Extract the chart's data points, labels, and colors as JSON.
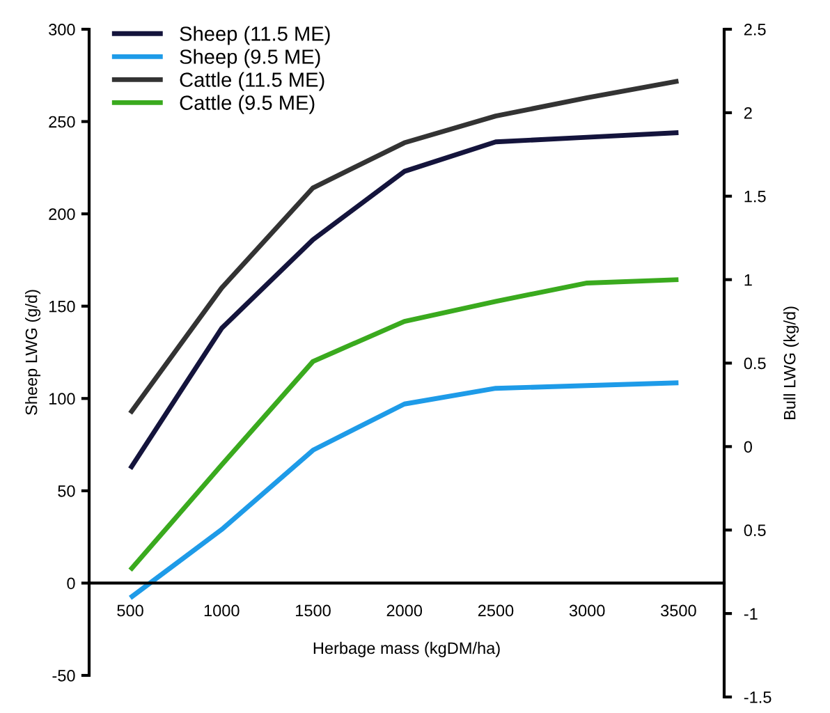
{
  "chart_data": {
    "type": "line",
    "xlabel": "Herbage mass (kgDM/ha)",
    "ylabel": "Sheep LWG (g/d)",
    "y2label": "Bull LWG (kg/d)",
    "x": [
      500,
      1000,
      1500,
      2000,
      2500,
      3000,
      3500
    ],
    "series": [
      {
        "name": "Sheep (11.5 ME)",
        "color": "#14143c",
        "values": [
          62,
          138,
          186,
          223,
          239,
          241.5,
          244
        ]
      },
      {
        "name": "Sheep (9.5 ME)",
        "color": "#1e9be8",
        "values": [
          -8,
          29,
          72,
          97,
          105.5,
          107,
          108.5
        ]
      },
      {
        "name": "Cattle (11.5 ME)",
        "color": "#333333",
        "axis": "y2",
        "values": [
          0.2,
          0.95,
          1.55,
          1.82,
          1.98,
          2.09,
          2.19
        ]
      },
      {
        "name": "Cattle (9.5 ME)",
        "color": "#3aaa1e",
        "axis": "y2",
        "values": [
          -0.74,
          -0.11,
          0.51,
          0.75,
          0.87,
          0.98,
          1.0
        ]
      }
    ],
    "xlim": [
      275,
      3750
    ],
    "xticks": [
      500,
      1000,
      1500,
      2000,
      2500,
      3000,
      3500
    ],
    "ylim": [
      -50,
      300
    ],
    "yticks": [
      -50,
      0,
      50,
      100,
      150,
      200,
      250,
      300
    ],
    "y2lim": [
      -1.5,
      2.5
    ],
    "y2ticks": [
      -1.5,
      -1,
      {
        "value": -0.5,
        "label": "0.5"
      },
      0,
      0.5,
      1,
      1.5,
      2,
      2.5
    ],
    "legend": "top left",
    "marker": "none",
    "line_style": "solid"
  }
}
